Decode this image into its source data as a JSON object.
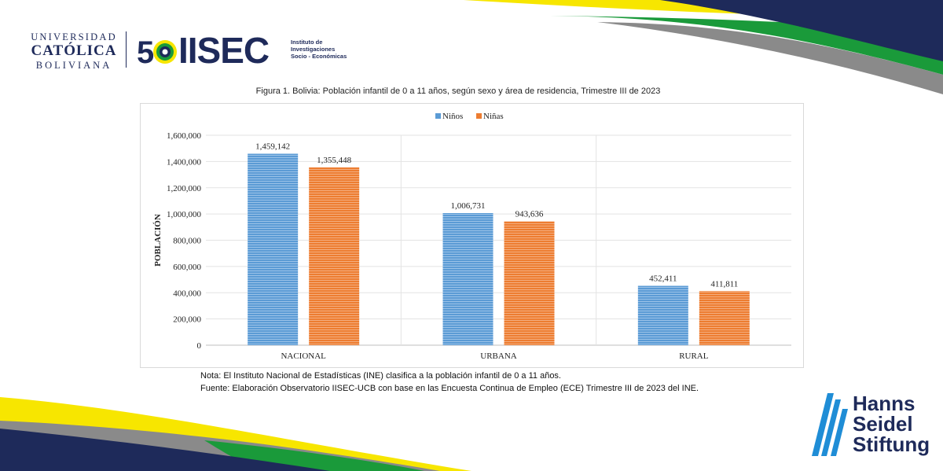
{
  "logos": {
    "ucb_line1": "UNIVERSIDAD",
    "ucb_line2": "CATÓLICA",
    "ucb_line3": "BOLIVIANA",
    "anniversary": "50",
    "iisec": "IISEC",
    "iisec_sub1": "Instituto de",
    "iisec_sub2": "Investigaciones",
    "iisec_sub3": "Socio - Económicas",
    "hss_line1": "Hanns",
    "hss_line2": "Seidel",
    "hss_line3": "Stiftung"
  },
  "colors": {
    "navy": "#1e2a5a",
    "yellow": "#f7e600",
    "green": "#1a9a3a",
    "gray": "#8a8a8a",
    "ninos": "#5b9bd5",
    "ninas": "#ed7d31",
    "hss_blue": "#1f8dd6"
  },
  "chart_data": {
    "type": "bar",
    "title": "Figura 1. Bolivia: Población infantil de 0 a 11 años, según sexo y área de residencia, Trimestre III de 2023",
    "categories": [
      "NACIONAL",
      "URBANA",
      "RURAL"
    ],
    "series": [
      {
        "name": "Niños",
        "values": [
          1459142,
          1006731,
          452411
        ],
        "labels": [
          "1,459,142",
          "1,006,731",
          "452,411"
        ]
      },
      {
        "name": "Niñas",
        "values": [
          1355448,
          943636,
          411811
        ],
        "labels": [
          "1,355,448",
          "943,636",
          "411,811"
        ]
      }
    ],
    "ylabel": "POBLACIÓN",
    "xlabel": "",
    "ylim": [
      0,
      1600000
    ],
    "yticks": [
      "0",
      "200,000",
      "400,000",
      "600,000",
      "800,000",
      "1,000,000",
      "1,200,000",
      "1,400,000",
      "1,600,000"
    ],
    "grid": true,
    "legend_position": "top"
  },
  "notes": {
    "nota": "Nota: El Instituto Nacional de Estadísticas (INE) clasifica a la población infantil de 0 a 11 años.",
    "fuente": "Fuente: Elaboración Observatorio IISEC-UCB con base en las Encuesta Continua de Empleo (ECE) Trimestre III de 2023 del INE."
  }
}
